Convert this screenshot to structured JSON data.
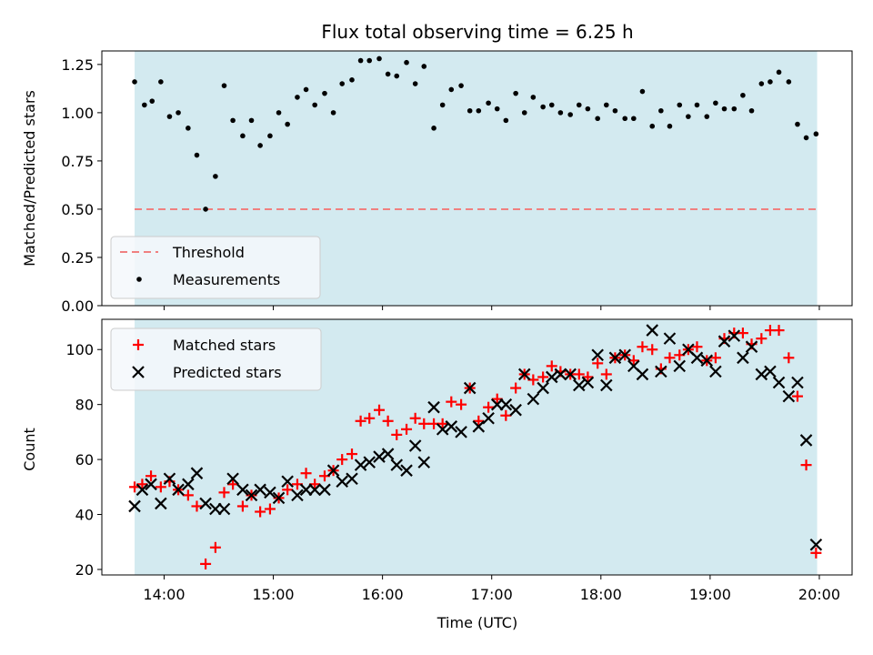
{
  "chart_data": [
    {
      "type": "scatter",
      "title": "Flux total observing time = 6.25 h",
      "xlabel": "",
      "ylabel": "Matched/Predicted stars",
      "ylim": [
        0,
        1.32
      ],
      "yticks": [
        "0.00",
        "0.25",
        "0.50",
        "0.75",
        "1.00",
        "1.25"
      ],
      "shaded_region_hours": [
        13.73,
        19.98
      ],
      "shaded_color": "#d3eaf0",
      "threshold": 0.5,
      "threshold_color": "#f08080",
      "legend": {
        "position": "lower-left",
        "entries": [
          "Threshold",
          "Measurements"
        ]
      },
      "series": [
        {
          "name": "Measurements",
          "marker": "dot",
          "color": "#000000",
          "x": [
            13.73,
            13.82,
            13.89,
            13.97,
            14.05,
            14.13,
            14.22,
            14.3,
            14.38,
            14.47,
            14.55,
            14.63,
            14.72,
            14.8,
            14.88,
            14.97,
            15.05,
            15.13,
            15.22,
            15.3,
            15.38,
            15.47,
            15.55,
            15.63,
            15.72,
            15.8,
            15.88,
            15.97,
            16.05,
            16.13,
            16.22,
            16.3,
            16.38,
            16.47,
            16.55,
            16.63,
            16.72,
            16.8,
            16.88,
            16.97,
            17.05,
            17.13,
            17.22,
            17.3,
            17.38,
            17.47,
            17.55,
            17.63,
            17.72,
            17.8,
            17.88,
            17.97,
            18.05,
            18.13,
            18.22,
            18.3,
            18.38,
            18.47,
            18.55,
            18.63,
            18.72,
            18.8,
            18.88,
            18.97,
            19.05,
            19.13,
            19.22,
            19.3,
            19.38,
            19.47,
            19.55,
            19.63,
            19.72,
            19.8,
            19.88,
            19.97
          ],
          "y": [
            1.16,
            1.04,
            1.06,
            1.16,
            0.98,
            1.0,
            0.92,
            0.78,
            0.5,
            0.67,
            1.14,
            0.96,
            0.88,
            0.96,
            0.83,
            0.88,
            1.0,
            0.94,
            1.08,
            1.12,
            1.04,
            1.1,
            1.0,
            1.15,
            1.17,
            1.27,
            1.27,
            1.28,
            1.2,
            1.19,
            1.26,
            1.15,
            1.24,
            0.92,
            1.04,
            1.12,
            1.14,
            1.01,
            1.01,
            1.05,
            1.02,
            0.96,
            1.1,
            1.0,
            1.08,
            1.03,
            1.04,
            1.0,
            0.99,
            1.04,
            1.02,
            0.97,
            1.04,
            1.01,
            0.97,
            0.97,
            1.11,
            0.93,
            1.01,
            0.93,
            1.04,
            0.98,
            1.04,
            0.98,
            1.05,
            1.02,
            1.02,
            1.09,
            1.01,
            1.15,
            1.16,
            1.21,
            1.16,
            0.94,
            0.87,
            0.89
          ]
        }
      ]
    },
    {
      "type": "scatter",
      "title": "",
      "xlabel": "Time (UTC)",
      "ylabel": "Count",
      "ylim": [
        18,
        111
      ],
      "xlim": [
        13.43,
        20.3
      ],
      "yticks": [
        "20",
        "40",
        "60",
        "80",
        "100"
      ],
      "xticks": [
        "14:00",
        "15:00",
        "16:00",
        "17:00",
        "18:00",
        "19:00",
        "20:00"
      ],
      "shaded_region_hours": [
        13.73,
        19.98
      ],
      "shaded_color": "#d3eaf0",
      "legend": {
        "position": "top-left",
        "entries": [
          "Matched stars",
          "Predicted stars"
        ]
      },
      "series": [
        {
          "name": "Matched stars",
          "marker": "plus",
          "color": "#ff0000",
          "x": [
            13.73,
            13.8,
            13.88,
            13.97,
            14.05,
            14.13,
            14.22,
            14.3,
            14.38,
            14.47,
            14.55,
            14.63,
            14.72,
            14.8,
            14.88,
            14.97,
            15.05,
            15.13,
            15.22,
            15.3,
            15.38,
            15.47,
            15.55,
            15.63,
            15.72,
            15.8,
            15.88,
            15.97,
            16.05,
            16.13,
            16.22,
            16.3,
            16.38,
            16.47,
            16.55,
            16.63,
            16.72,
            16.8,
            16.88,
            16.97,
            17.05,
            17.13,
            17.22,
            17.3,
            17.38,
            17.47,
            17.55,
            17.63,
            17.72,
            17.8,
            17.88,
            17.97,
            18.05,
            18.13,
            18.22,
            18.3,
            18.38,
            18.47,
            18.55,
            18.63,
            18.72,
            18.8,
            18.88,
            18.97,
            19.05,
            19.13,
            19.22,
            19.3,
            19.38,
            19.47,
            19.55,
            19.63,
            19.72,
            19.8,
            19.88,
            19.97
          ],
          "y": [
            50,
            51,
            54,
            50,
            52,
            49,
            47,
            43,
            22,
            28,
            48,
            51,
            43,
            47,
            41,
            42,
            46,
            49,
            51,
            55,
            51,
            54,
            56,
            60,
            62,
            74,
            75,
            78,
            74,
            69,
            71,
            75,
            73,
            73,
            73,
            81,
            80,
            86,
            74,
            79,
            82,
            76,
            86,
            91,
            89,
            90,
            94,
            92,
            91,
            91,
            90,
            95,
            91,
            97,
            98,
            96,
            101,
            100,
            93,
            97,
            98,
            100,
            101,
            96,
            97,
            104,
            106,
            106,
            102,
            104,
            107,
            107,
            97,
            83,
            58,
            26
          ]
        },
        {
          "name": "Predicted stars",
          "marker": "cross",
          "color": "#000000",
          "x": [
            13.73,
            13.8,
            13.88,
            13.97,
            14.05,
            14.13,
            14.22,
            14.3,
            14.38,
            14.47,
            14.55,
            14.63,
            14.72,
            14.8,
            14.88,
            14.97,
            15.05,
            15.13,
            15.22,
            15.3,
            15.38,
            15.47,
            15.55,
            15.63,
            15.72,
            15.8,
            15.88,
            15.97,
            16.05,
            16.13,
            16.22,
            16.3,
            16.38,
            16.47,
            16.55,
            16.63,
            16.72,
            16.8,
            16.88,
            16.97,
            17.05,
            17.13,
            17.22,
            17.3,
            17.38,
            17.47,
            17.55,
            17.63,
            17.72,
            17.8,
            17.88,
            17.97,
            18.05,
            18.13,
            18.22,
            18.3,
            18.38,
            18.47,
            18.55,
            18.63,
            18.72,
            18.8,
            18.88,
            18.97,
            19.05,
            19.13,
            19.22,
            19.3,
            19.38,
            19.47,
            19.55,
            19.63,
            19.72,
            19.8,
            19.88,
            19.97
          ],
          "y": [
            43,
            49,
            51,
            44,
            53,
            49,
            51,
            55,
            44,
            42,
            42,
            53,
            49,
            47,
            49,
            48,
            46,
            52,
            47,
            49,
            49,
            49,
            56,
            52,
            53,
            58,
            59,
            61,
            62,
            58,
            56,
            65,
            59,
            79,
            71,
            72,
            70,
            86,
            72,
            75,
            80,
            80,
            78,
            91,
            82,
            86,
            90,
            91,
            91,
            87,
            88,
            98,
            87,
            97,
            98,
            94,
            91,
            107,
            92,
            104,
            94,
            100,
            97,
            96,
            92,
            103,
            105,
            97,
            101,
            91,
            92,
            88,
            83,
            88,
            67,
            29
          ]
        }
      ]
    }
  ]
}
